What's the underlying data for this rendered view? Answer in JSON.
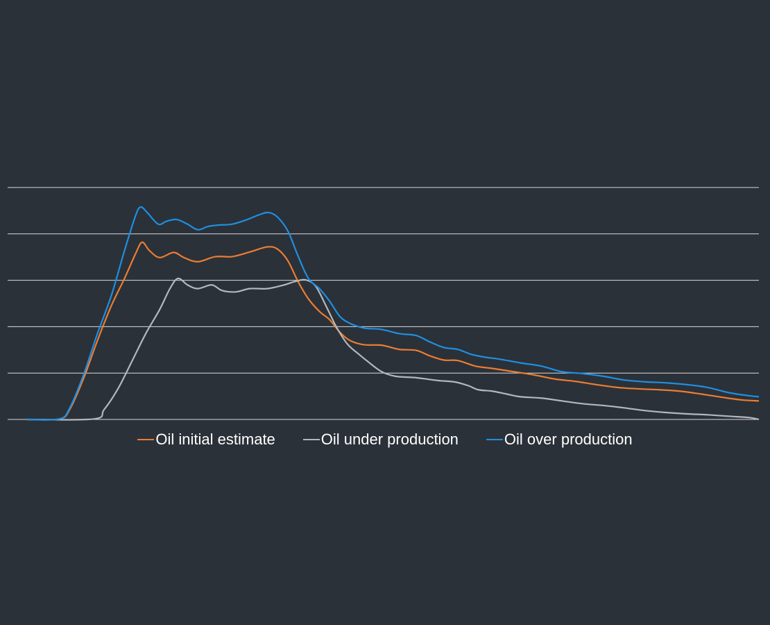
{
  "chart_data": {
    "type": "line",
    "title": "",
    "xlabel": "",
    "ylabel": "",
    "xlim": [
      0,
      100
    ],
    "ylim": [
      0,
      5
    ],
    "grid": true,
    "gridlines_y": [
      0,
      1,
      2,
      3,
      4,
      5
    ],
    "tick_labels_shown": false,
    "legend_position": "bottom",
    "background": "#2b3139",
    "series": [
      {
        "name": "Oil initial estimate",
        "color": "#ed7d31",
        "x": [
          0,
          4.5,
          5.9,
          7.8,
          9.7,
          11.6,
          13.4,
          14.9,
          15.8,
          16.8,
          18.2,
          20.1,
          21.5,
          23.4,
          25.8,
          28.1,
          30.5,
          32.9,
          34.3,
          35.7,
          37.1,
          38.5,
          40.0,
          41.4,
          42.8,
          44.2,
          46.1,
          48.5,
          50.9,
          53.2,
          55.1,
          57.0,
          58.9,
          61.3,
          63.6,
          66.5,
          69.3,
          72.2,
          75.0,
          77.8,
          80.7,
          83.5,
          86.4,
          89.2,
          92.0,
          94.9,
          97.7,
          100
        ],
        "y": [
          0,
          0.01,
          0.21,
          0.88,
          1.7,
          2.45,
          3.04,
          3.57,
          3.82,
          3.64,
          3.49,
          3.6,
          3.49,
          3.4,
          3.51,
          3.51,
          3.61,
          3.72,
          3.67,
          3.42,
          2.97,
          2.6,
          2.33,
          2.15,
          1.88,
          1.7,
          1.61,
          1.6,
          1.51,
          1.49,
          1.37,
          1.28,
          1.27,
          1.15,
          1.1,
          1.03,
          0.96,
          0.87,
          0.82,
          0.75,
          0.69,
          0.66,
          0.64,
          0.61,
          0.55,
          0.48,
          0.42,
          0.4
        ]
      },
      {
        "name": "Oil under production",
        "color": "#b4b8bd",
        "x": [
          0,
          9.2,
          10.6,
          12.5,
          14.4,
          16.3,
          18.2,
          19.6,
          20.7,
          22.0,
          23.4,
          25.3,
          26.7,
          28.6,
          30.5,
          32.9,
          35.2,
          36.6,
          38.1,
          39.5,
          40.9,
          42.3,
          43.8,
          45.2,
          46.6,
          48.5,
          50.4,
          53.2,
          56.1,
          58.4,
          60.3,
          61.7,
          63.6,
          65.5,
          67.4,
          70.3,
          73.1,
          75.9,
          78.8,
          81.6,
          84.5,
          87.3,
          90.2,
          93.0,
          95.8,
          98.7,
          100
        ],
        "y": [
          0,
          0.01,
          0.21,
          0.66,
          1.25,
          1.85,
          2.37,
          2.82,
          3.04,
          2.9,
          2.82,
          2.9,
          2.78,
          2.75,
          2.82,
          2.82,
          2.9,
          2.97,
          3.01,
          2.87,
          2.45,
          2.0,
          1.63,
          1.43,
          1.25,
          1.03,
          0.93,
          0.9,
          0.84,
          0.81,
          0.73,
          0.64,
          0.61,
          0.55,
          0.49,
          0.46,
          0.4,
          0.34,
          0.3,
          0.25,
          0.19,
          0.15,
          0.12,
          0.1,
          0.07,
          0.04,
          0
        ]
      },
      {
        "name": "Oil over production",
        "color": "#1f8fe0",
        "x": [
          0,
          4.5,
          5.9,
          7.8,
          9.7,
          11.6,
          13.4,
          14.9,
          15.6,
          16.5,
          18.0,
          19.1,
          20.5,
          22.0,
          23.4,
          24.8,
          26.2,
          28.1,
          30.0,
          31.9,
          33.1,
          34.3,
          35.7,
          37.1,
          38.5,
          40.0,
          41.4,
          42.8,
          44.2,
          46.1,
          48.5,
          50.9,
          53.2,
          55.1,
          57.0,
          58.9,
          60.8,
          62.7,
          64.6,
          67.4,
          70.3,
          73.1,
          75.9,
          78.8,
          81.6,
          84.5,
          87.3,
          90.2,
          93.0,
          95.8,
          98.7,
          100
        ],
        "y": [
          0,
          0.01,
          0.24,
          0.96,
          1.85,
          2.67,
          3.64,
          4.39,
          4.58,
          4.46,
          4.21,
          4.27,
          4.31,
          4.21,
          4.09,
          4.16,
          4.19,
          4.21,
          4.3,
          4.42,
          4.46,
          4.36,
          4.06,
          3.52,
          3.04,
          2.82,
          2.55,
          2.22,
          2.07,
          1.97,
          1.94,
          1.85,
          1.81,
          1.67,
          1.55,
          1.51,
          1.4,
          1.34,
          1.3,
          1.22,
          1.15,
          1.03,
          0.99,
          0.93,
          0.85,
          0.81,
          0.79,
          0.75,
          0.69,
          0.58,
          0.51,
          0.49
        ]
      }
    ]
  }
}
